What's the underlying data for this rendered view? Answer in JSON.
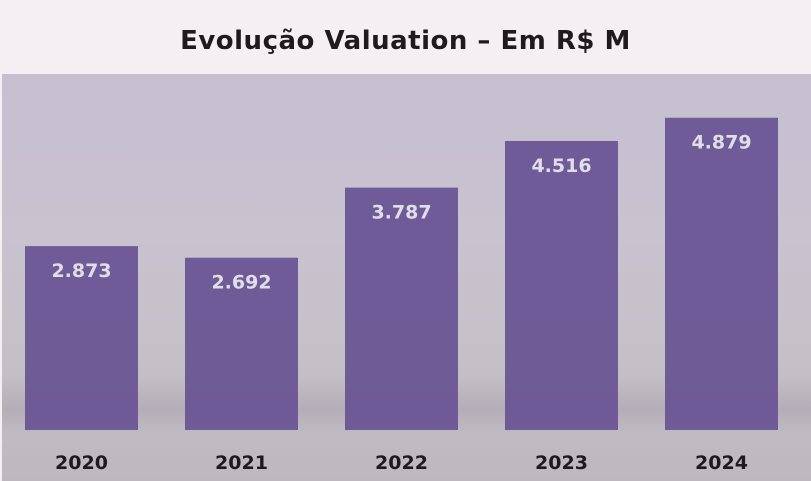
{
  "chart_data": {
    "type": "bar",
    "title": "Evolução Valuation – Em R$ M",
    "categories": [
      "2020",
      "2021",
      "2022",
      "2023",
      "2024"
    ],
    "values": [
      2.873,
      2.692,
      3.787,
      4.516,
      4.879
    ],
    "value_labels": [
      "2.873",
      "2.692",
      "3.787",
      "4.516",
      "4.879"
    ],
    "xlabel": "",
    "ylabel": "",
    "ylim": [
      0,
      5
    ],
    "grid": false,
    "colors": {
      "bar": "#6a5594",
      "label": "#e2dee9",
      "tick": "#1e1a1e"
    }
  }
}
